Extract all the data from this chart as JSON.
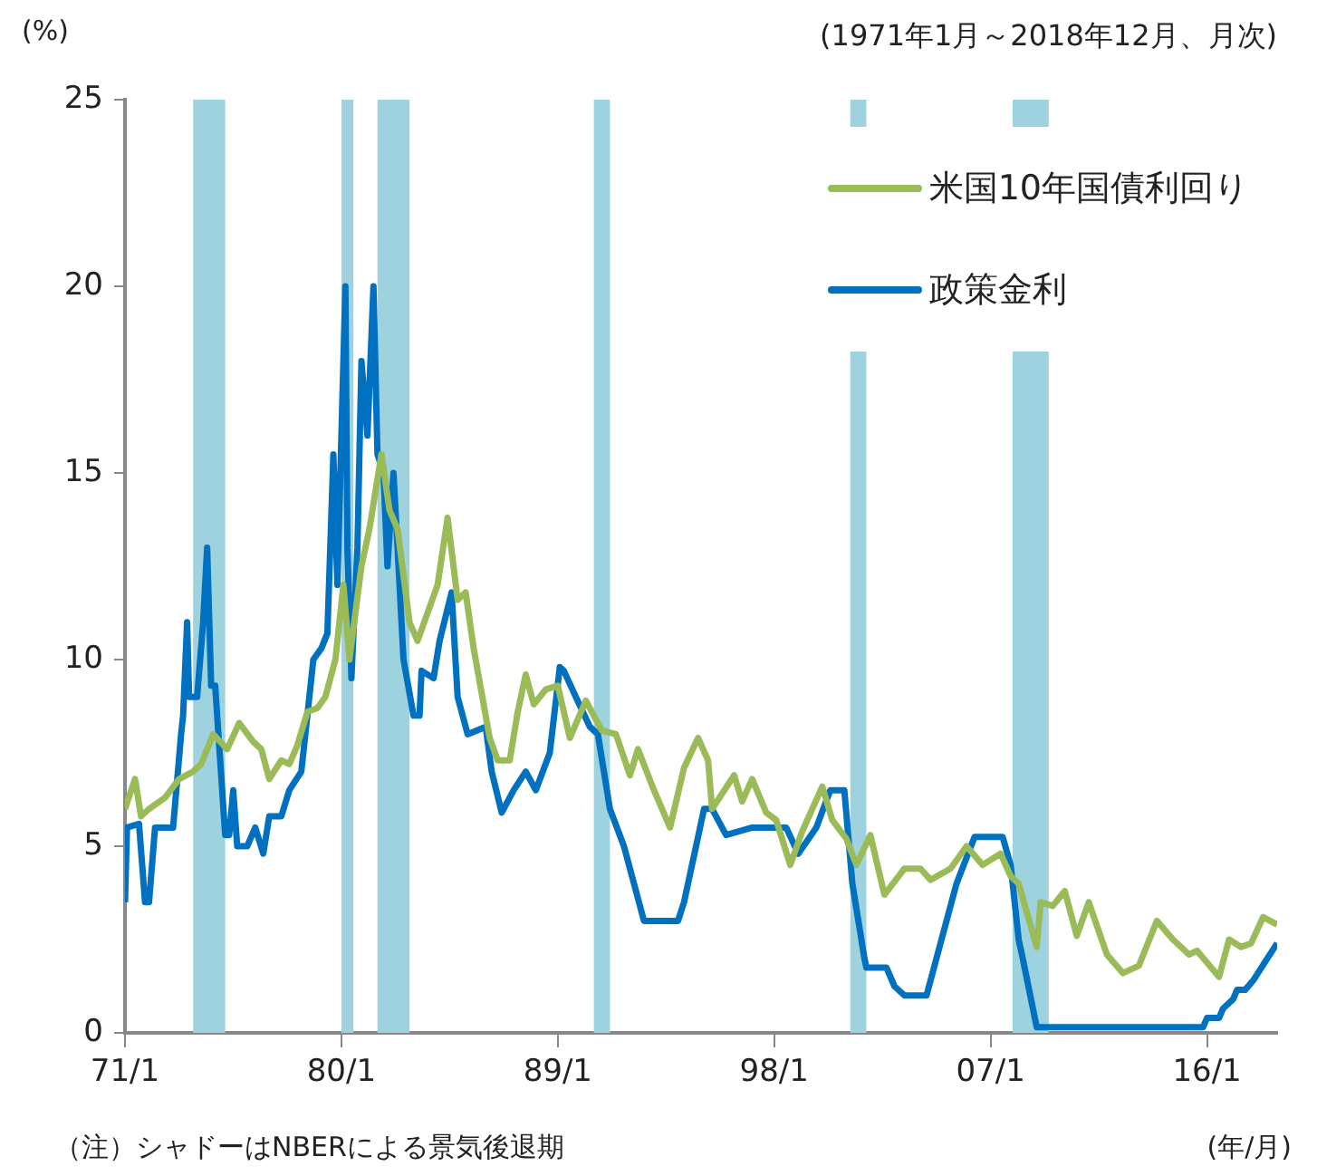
{
  "chart_data": {
    "type": "line",
    "ylabel": "(%)",
    "xlabel": "(年/月)",
    "annotations": [
      "(1971年1月～2018年12月、月次)",
      "（注）シャドーはNBERによる景気後退期"
    ],
    "xlim": [
      "1971-01",
      "2018-12"
    ],
    "xticks": [
      {
        "value": "1971-01",
        "label": "71/1"
      },
      {
        "value": "1980-01",
        "label": "80/1"
      },
      {
        "value": "1989-01",
        "label": "89/1"
      },
      {
        "value": "1998-01",
        "label": "98/1"
      },
      {
        "value": "2007-01",
        "label": "07/1"
      },
      {
        "value": "2016-01",
        "label": "16/1"
      }
    ],
    "ylim": [
      0,
      25
    ],
    "yticks": [
      0,
      5,
      10,
      15,
      20,
      25
    ],
    "grid": false,
    "legend": "top right",
    "marker": "none",
    "line_style": "solid",
    "bands": [
      {
        "axis": "x",
        "from": "1973-11",
        "to": "1975-03",
        "color": "#9fd2df"
      },
      {
        "axis": "x",
        "from": "1980-01",
        "to": "1980-07",
        "color": "#9fd2df"
      },
      {
        "axis": "x",
        "from": "1981-07",
        "to": "1982-11",
        "color": "#9fd2df"
      },
      {
        "axis": "x",
        "from": "1990-07",
        "to": "1991-03",
        "color": "#9fd2df"
      },
      {
        "axis": "x",
        "from": "2001-03",
        "to": "2001-11",
        "color": "#9fd2df"
      },
      {
        "axis": "x",
        "from": "2007-12",
        "to": "2009-06",
        "color": "#9fd2df"
      }
    ],
    "series": [
      {
        "name": "米国10年国債利回り",
        "color": "#9bbb59",
        "x": [
          "1971-01",
          "1971-06",
          "1971-09",
          "1972-01",
          "1972-09",
          "1973-04",
          "1973-11",
          "1974-03",
          "1974-09",
          "1975-04",
          "1975-10",
          "1976-05",
          "1976-09",
          "1977-01",
          "1977-07",
          "1977-11",
          "1978-03",
          "1978-08",
          "1979-01",
          "1979-05",
          "1979-10",
          "1980-02",
          "1980-05",
          "1980-11",
          "1981-03",
          "1981-09",
          "1982-01",
          "1982-05",
          "1982-11",
          "1983-03",
          "1984-01",
          "1984-06",
          "1984-11",
          "1985-03",
          "1985-07",
          "1986-03",
          "1986-07",
          "1987-01",
          "1987-05",
          "1987-09",
          "1988-01",
          "1988-07",
          "1989-01",
          "1989-07",
          "1990-03",
          "1990-11",
          "1991-06",
          "1992-01",
          "1992-05",
          "1993-01",
          "1993-09",
          "1994-04",
          "1994-11",
          "1995-04",
          "1995-06",
          "1996-05",
          "1996-09",
          "1997-02",
          "1997-09",
          "1998-02",
          "1998-09",
          "1999-03",
          "2000-01",
          "2000-06",
          "2001-01",
          "2001-06",
          "2002-01",
          "2002-08",
          "2003-06",
          "2004-02",
          "2004-07",
          "2005-05",
          "2006-01",
          "2006-09",
          "2007-06",
          "2007-11",
          "2008-03",
          "2008-12",
          "2009-02",
          "2009-08",
          "2010-02",
          "2010-08",
          "2011-02",
          "2011-11",
          "2012-07",
          "2013-03",
          "2013-12",
          "2014-08",
          "2015-04",
          "2015-08",
          "2016-07",
          "2016-12",
          "2017-06",
          "2017-11",
          "2018-05",
          "2018-12"
        ],
        "values": [
          6.0,
          6.8,
          5.8,
          6.0,
          6.3,
          6.8,
          7.0,
          7.2,
          8.0,
          7.6,
          8.3,
          7.8,
          7.6,
          6.8,
          7.3,
          7.2,
          7.7,
          8.6,
          8.7,
          9.0,
          10.0,
          12.0,
          10.0,
          12.5,
          13.5,
          15.5,
          14.0,
          13.5,
          11.0,
          10.5,
          12.0,
          13.8,
          11.6,
          11.8,
          10.3,
          7.9,
          7.3,
          7.3,
          8.6,
          9.6,
          8.8,
          9.2,
          9.3,
          7.9,
          8.9,
          8.1,
          8.0,
          6.9,
          7.6,
          6.5,
          5.5,
          7.1,
          7.9,
          7.3,
          6.0,
          6.9,
          6.2,
          6.8,
          5.9,
          5.7,
          4.5,
          5.4,
          6.6,
          5.7,
          5.2,
          4.5,
          5.3,
          3.7,
          4.4,
          4.4,
          4.1,
          4.4,
          5.0,
          4.5,
          4.8,
          4.2,
          4.0,
          2.3,
          3.5,
          3.4,
          3.8,
          2.6,
          3.5,
          2.1,
          1.6,
          1.8,
          3.0,
          2.5,
          2.1,
          2.2,
          1.5,
          2.5,
          2.3,
          2.4,
          3.1,
          2.9
        ]
      },
      {
        "name": "政策金利",
        "color": "#0070c0",
        "x": [
          "1971-01",
          "1971-02",
          "1971-08",
          "1971-11",
          "1972-01",
          "1972-04",
          "1973-01",
          "1973-05",
          "1973-06",
          "1973-08",
          "1973-09",
          "1974-01",
          "1974-04",
          "1974-06",
          "1974-08",
          "1974-10",
          "1975-03",
          "1975-05",
          "1975-07",
          "1975-09",
          "1976-02",
          "1976-06",
          "1976-10",
          "1977-01",
          "1977-07",
          "1977-11",
          "1978-05",
          "1978-07",
          "1978-11",
          "1979-03",
          "1979-06",
          "1979-09",
          "1979-11",
          "1980-03",
          "1980-04",
          "1980-06",
          "1980-09",
          "1980-11",
          "1981-02",
          "1981-05",
          "1981-07",
          "1981-10",
          "1981-12",
          "1982-03",
          "1982-05",
          "1982-08",
          "1983-01",
          "1983-04",
          "1983-05",
          "1983-11",
          "1984-02",
          "1984-08",
          "1984-11",
          "1985-04",
          "1986-01",
          "1986-04",
          "1986-09",
          "1987-03",
          "1987-09",
          "1988-02",
          "1988-09",
          "1989-02",
          "1989-04",
          "1989-10",
          "1990-05",
          "1990-09",
          "1991-03",
          "1991-10",
          "1992-03",
          "1992-08",
          "1994-01",
          "1994-04",
          "1994-08",
          "1995-02",
          "1995-06",
          "1996-01",
          "1997-02",
          "1998-07",
          "1999-01",
          "1999-10",
          "2000-05",
          "2000-12",
          "2001-04",
          "2001-10",
          "2001-11",
          "2002-09",
          "2003-01",
          "2003-06",
          "2004-05",
          "2004-10",
          "2005-08",
          "2006-05",
          "2007-07",
          "2007-11",
          "2008-03",
          "2008-05",
          "2008-12",
          "2015-11",
          "2016-01",
          "2016-07",
          "2016-09",
          "2017-02",
          "2017-04",
          "2017-08",
          "2017-12",
          "2018-06",
          "2018-12"
        ],
        "values": [
          3.5,
          5.5,
          5.6,
          3.5,
          3.5,
          5.5,
          5.5,
          8.0,
          8.5,
          11.0,
          9.0,
          9.0,
          11.0,
          13.0,
          9.3,
          9.3,
          5.3,
          5.3,
          6.5,
          5.0,
          5.0,
          5.5,
          4.8,
          5.8,
          5.8,
          6.5,
          7.0,
          8.0,
          10.0,
          10.3,
          10.7,
          15.5,
          12.0,
          20.0,
          13.0,
          9.5,
          13.0,
          18.0,
          16.0,
          20.0,
          15.5,
          15.0,
          12.5,
          15.0,
          13.0,
          10.0,
          8.5,
          8.5,
          9.7,
          9.5,
          10.5,
          11.8,
          9.0,
          8.0,
          8.2,
          7.0,
          5.9,
          6.5,
          7.0,
          6.5,
          7.5,
          9.8,
          9.7,
          9.0,
          8.2,
          8.0,
          6.0,
          5.0,
          4.0,
          3.0,
          3.0,
          3.5,
          4.5,
          6.0,
          6.0,
          5.3,
          5.5,
          5.5,
          4.8,
          5.5,
          6.5,
          6.5,
          4.0,
          2.0,
          1.75,
          1.75,
          1.25,
          1.0,
          1.0,
          2.0,
          4.0,
          5.25,
          5.25,
          4.5,
          2.5,
          2.0,
          0.15,
          0.15,
          0.4,
          0.4,
          0.65,
          0.9,
          1.15,
          1.15,
          1.4,
          1.9,
          2.4
        ]
      }
    ]
  }
}
